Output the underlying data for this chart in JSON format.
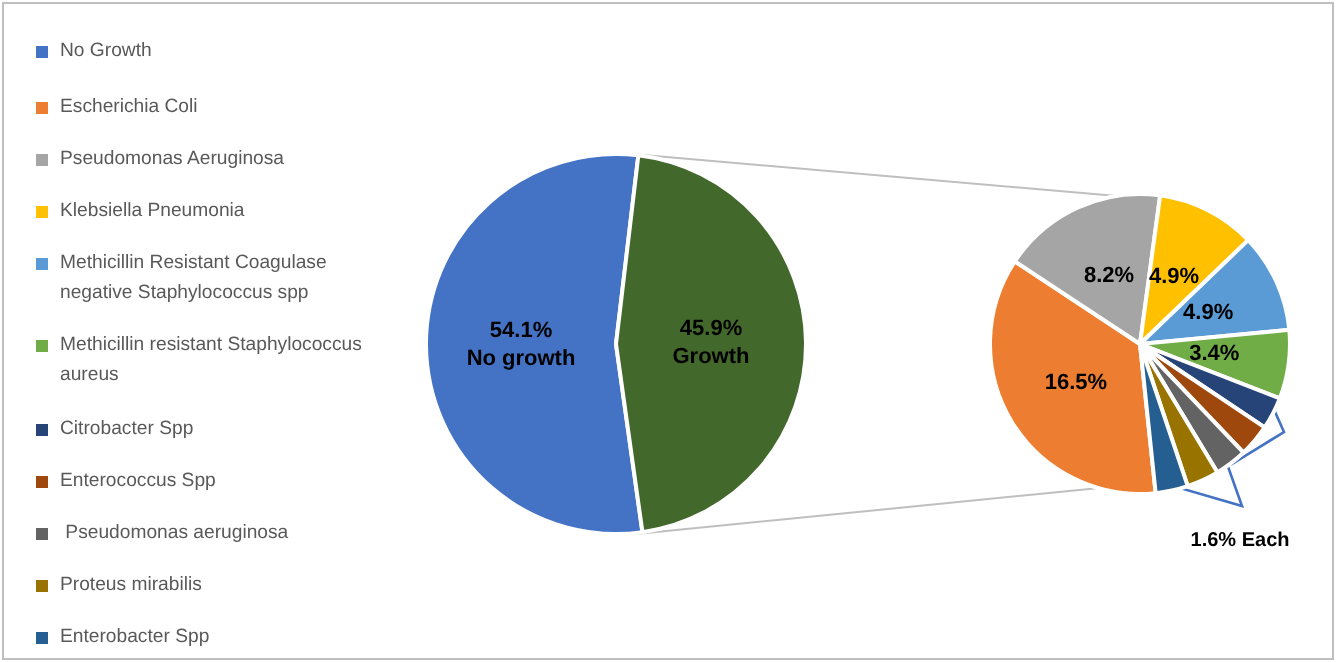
{
  "chart_data": [
    {
      "type": "pie",
      "categories": [
        "No Growth",
        null
      ],
      "values": [
        54.1,
        45.9
      ],
      "colors": [
        "#4472c4",
        "#43682b"
      ],
      "value_labels": [
        "54.1%\nNo growth",
        "45.9%\nGrowth"
      ],
      "legend": "left"
    },
    {
      "type": "pie",
      "categories": [
        "Escherichia Coli",
        "Pseudomonas Aeruginosa",
        "Klebsiella Pneumonia",
        "Methicillin Resistant Coagulase negative Staphylococcus spp",
        "Methicillin resistant Staphylococcus aureus",
        "Citrobacter Spp",
        "Enterococcus Spp",
        " Pseudomonas aeruginosa",
        "Proteus mirabilis",
        "Enterobacter Spp"
      ],
      "values": [
        16.5,
        8.2,
        4.9,
        4.9,
        3.4,
        1.6,
        1.6,
        1.6,
        1.6,
        1.6
      ],
      "colors": [
        "#ed7d31",
        "#a5a5a5",
        "#ffc000",
        "#5b9bd5",
        "#70ad47",
        "#264478",
        "#9e480e",
        "#636363",
        "#997300",
        "#255e91"
      ],
      "value_labels": [
        "16.5%",
        "8.2%",
        "4.9%",
        "4.9%",
        "3.4%",
        null,
        null,
        null,
        null,
        null
      ],
      "annotations": [
        "1.6% Each"
      ],
      "legend": "left"
    }
  ]
}
